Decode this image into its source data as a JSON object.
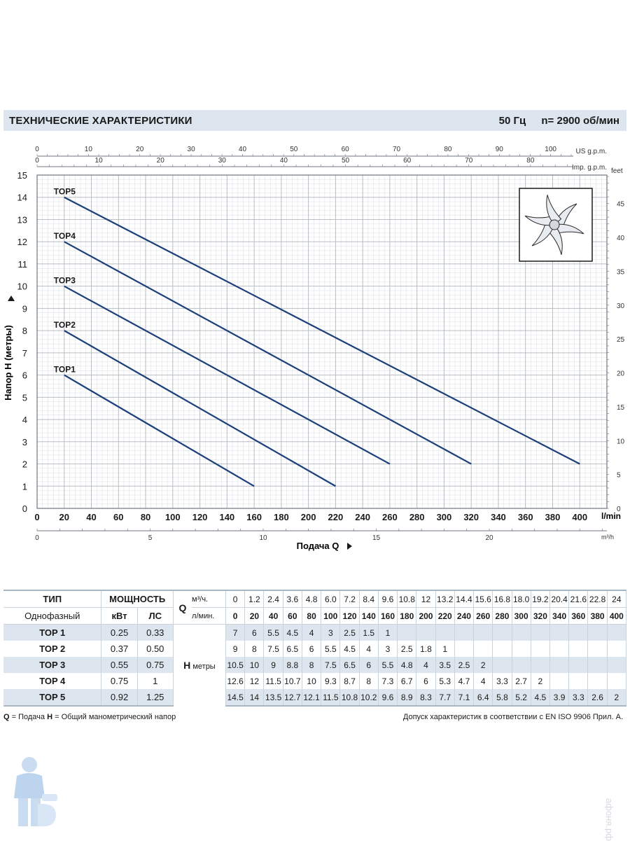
{
  "header": {
    "title": "ТЕХНИЧЕСКИЕ ХАРАКТЕРИСТИКИ",
    "frequency": "50 Гц",
    "speed": "n= 2900  об/мин"
  },
  "chart_data": {
    "type": "line",
    "ylabel": "Напор Н (метры)",
    "xlabel": "Подача Q",
    "x_unit": "l/min",
    "xlim": [
      0,
      420
    ],
    "ylim": [
      0,
      15
    ],
    "x_ticks": [
      0,
      20,
      40,
      60,
      80,
      100,
      120,
      140,
      160,
      180,
      200,
      220,
      240,
      260,
      280,
      300,
      320,
      340,
      360,
      380,
      400
    ],
    "y_ticks": [
      0,
      1,
      2,
      3,
      4,
      5,
      6,
      7,
      8,
      9,
      10,
      11,
      12,
      13,
      14,
      15
    ],
    "grid": true,
    "top_axis_usgpm": {
      "label": "US g.p.m.",
      "ticks": [
        0,
        10,
        20,
        30,
        40,
        50,
        60,
        70,
        80,
        90,
        100
      ]
    },
    "top_axis_impgpm": {
      "label": "Imp. g.p.m.",
      "ticks": [
        0,
        10,
        20,
        30,
        40,
        50,
        60,
        70,
        80
      ]
    },
    "right_axis_feet": {
      "label": "feet",
      "ticks": [
        0,
        5,
        10,
        15,
        20,
        25,
        30,
        35,
        40,
        45
      ]
    },
    "bottom_axis_m3h": {
      "label": "m³/h",
      "ticks": [
        0,
        5,
        10,
        15,
        20
      ]
    },
    "series": [
      {
        "name": "TOP1",
        "x": [
          20,
          160
        ],
        "y": [
          6,
          1
        ]
      },
      {
        "name": "TOP2",
        "x": [
          20,
          220
        ],
        "y": [
          8,
          1
        ]
      },
      {
        "name": "TOP3",
        "x": [
          20,
          260
        ],
        "y": [
          10,
          2
        ]
      },
      {
        "name": "TOP4",
        "x": [
          20,
          320
        ],
        "y": [
          12,
          2
        ]
      },
      {
        "name": "TOP5",
        "x": [
          20,
          400
        ],
        "y": [
          14,
          2
        ]
      }
    ],
    "line_color": "#1c3f7a",
    "grid_color": "#b9bec5"
  },
  "table": {
    "col_type": "ТИП",
    "col_phase": "Однофазный",
    "col_power": "МОЩНОСТЬ",
    "col_kw": "кВт",
    "col_hp": "ЛС",
    "q_label": "Q",
    "q_unit_m3": "м³/ч.",
    "q_unit_lmin": "л/мин.",
    "h_label": "H",
    "h_unit": "метры",
    "q_m3h": [
      "0",
      "1.2",
      "2.4",
      "3.6",
      "4.8",
      "6.0",
      "7.2",
      "8.4",
      "9.6",
      "10.8",
      "12",
      "13.2",
      "14.4",
      "15.6",
      "16.8",
      "18.0",
      "19.2",
      "20.4",
      "21.6",
      "22.8",
      "24"
    ],
    "q_lmin": [
      "0",
      "20",
      "40",
      "60",
      "80",
      "100",
      "120",
      "140",
      "160",
      "180",
      "200",
      "220",
      "240",
      "260",
      "280",
      "300",
      "320",
      "340",
      "360",
      "380",
      "400"
    ],
    "rows": [
      {
        "name": "TOP 1",
        "kw": "0.25",
        "hp": "0.33",
        "h": [
          "7",
          "6",
          "5.5",
          "4.5",
          "4",
          "3",
          "2.5",
          "1.5",
          "1",
          "",
          "",
          "",
          "",
          "",
          "",
          "",
          "",
          "",
          "",
          "",
          ""
        ]
      },
      {
        "name": "TOP 2",
        "kw": "0.37",
        "hp": "0.50",
        "h": [
          "9",
          "8",
          "7.5",
          "6.5",
          "6",
          "5.5",
          "4.5",
          "4",
          "3",
          "2.5",
          "1.8",
          "1",
          "",
          "",
          "",
          "",
          "",
          "",
          "",
          "",
          ""
        ]
      },
      {
        "name": "TOP 3",
        "kw": "0.55",
        "hp": "0.75",
        "h": [
          "10.5",
          "10",
          "9",
          "8.8",
          "8",
          "7.5",
          "6.5",
          "6",
          "5.5",
          "4.8",
          "4",
          "3.5",
          "2.5",
          "2",
          "",
          "",
          "",
          "",
          "",
          "",
          ""
        ]
      },
      {
        "name": "TOP 4",
        "kw": "0.75",
        "hp": "1",
        "h": [
          "12.6",
          "12",
          "11.5",
          "10.7",
          "10",
          "9.3",
          "8.7",
          "8",
          "7.3",
          "6.7",
          "6",
          "5.3",
          "4.7",
          "4",
          "3.3",
          "2.7",
          "2",
          "",
          "",
          "",
          ""
        ]
      },
      {
        "name": "TOP 5",
        "kw": "0.92",
        "hp": "1.25",
        "h": [
          "14.5",
          "14",
          "13.5",
          "12.7",
          "12.1",
          "11.5",
          "10.8",
          "10.2",
          "9.6",
          "8.9",
          "8.3",
          "7.7",
          "7.1",
          "6.4",
          "5.8",
          "5.2",
          "4.5",
          "3.9",
          "3.3",
          "2.6",
          "2"
        ]
      }
    ]
  },
  "footer": {
    "q_key": "Q",
    "q_desc": " = Подача   ",
    "h_key": "H",
    "h_desc": " = Общий манометрический напор",
    "tolerance": "Допуск характеристик в соответствии с EN ISO 9906 Прил. А."
  },
  "watermark_text": "афоня.рф"
}
